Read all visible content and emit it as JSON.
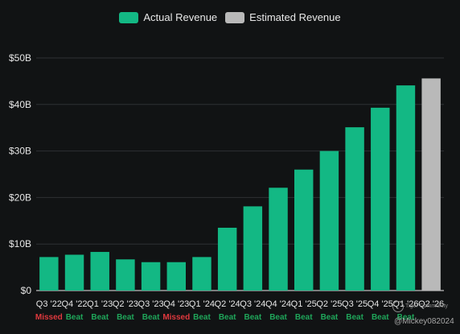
{
  "chart_data": {
    "type": "bar",
    "title": "",
    "xlabel": "",
    "ylabel": "",
    "ylim": [
      0,
      50
    ],
    "y_ticks": [
      "$0",
      "$10B",
      "$20B",
      "$30B",
      "$40B",
      "$50B"
    ],
    "y_tick_values": [
      0,
      10,
      20,
      30,
      40,
      50
    ],
    "grid": true,
    "legend_position": "top-center",
    "categories": [
      "Q3 '22",
      "Q4 '22",
      "Q1 '23",
      "Q2 '23",
      "Q3 '23",
      "Q4 '23",
      "Q1 '24",
      "Q2 '24",
      "Q3 '24",
      "Q4 '24",
      "Q1 '25",
      "Q2 '25",
      "Q3 '25",
      "Q4 '25",
      "Q1 '26",
      "Q2 '26"
    ],
    "values": [
      7.2,
      7.7,
      8.3,
      6.7,
      6.1,
      6.1,
      7.2,
      13.5,
      18.1,
      22.1,
      26.0,
      30.0,
      35.1,
      39.3,
      44.1,
      45.6
    ],
    "status": [
      "Missed",
      "Beat",
      "Beat",
      "Beat",
      "Beat",
      "Missed",
      "Beat",
      "Beat",
      "Beat",
      "Beat",
      "Beat",
      "Beat",
      "Beat",
      "Beat",
      "Beat",
      ""
    ],
    "kind": [
      "actual",
      "actual",
      "actual",
      "actual",
      "actual",
      "actual",
      "actual",
      "actual",
      "actual",
      "actual",
      "actual",
      "actual",
      "actual",
      "actual",
      "actual",
      "estimated"
    ],
    "series": [
      {
        "name": "Actual Revenue",
        "color": "#13b884"
      },
      {
        "name": "Estimated Revenue",
        "color": "#b9b9b9"
      }
    ],
    "status_colors": {
      "Beat": "#1fa65a",
      "Missed": "#e0393e"
    }
  },
  "watermark": {
    "brand": "Tiger Community",
    "user": "@Mickey082024"
  }
}
